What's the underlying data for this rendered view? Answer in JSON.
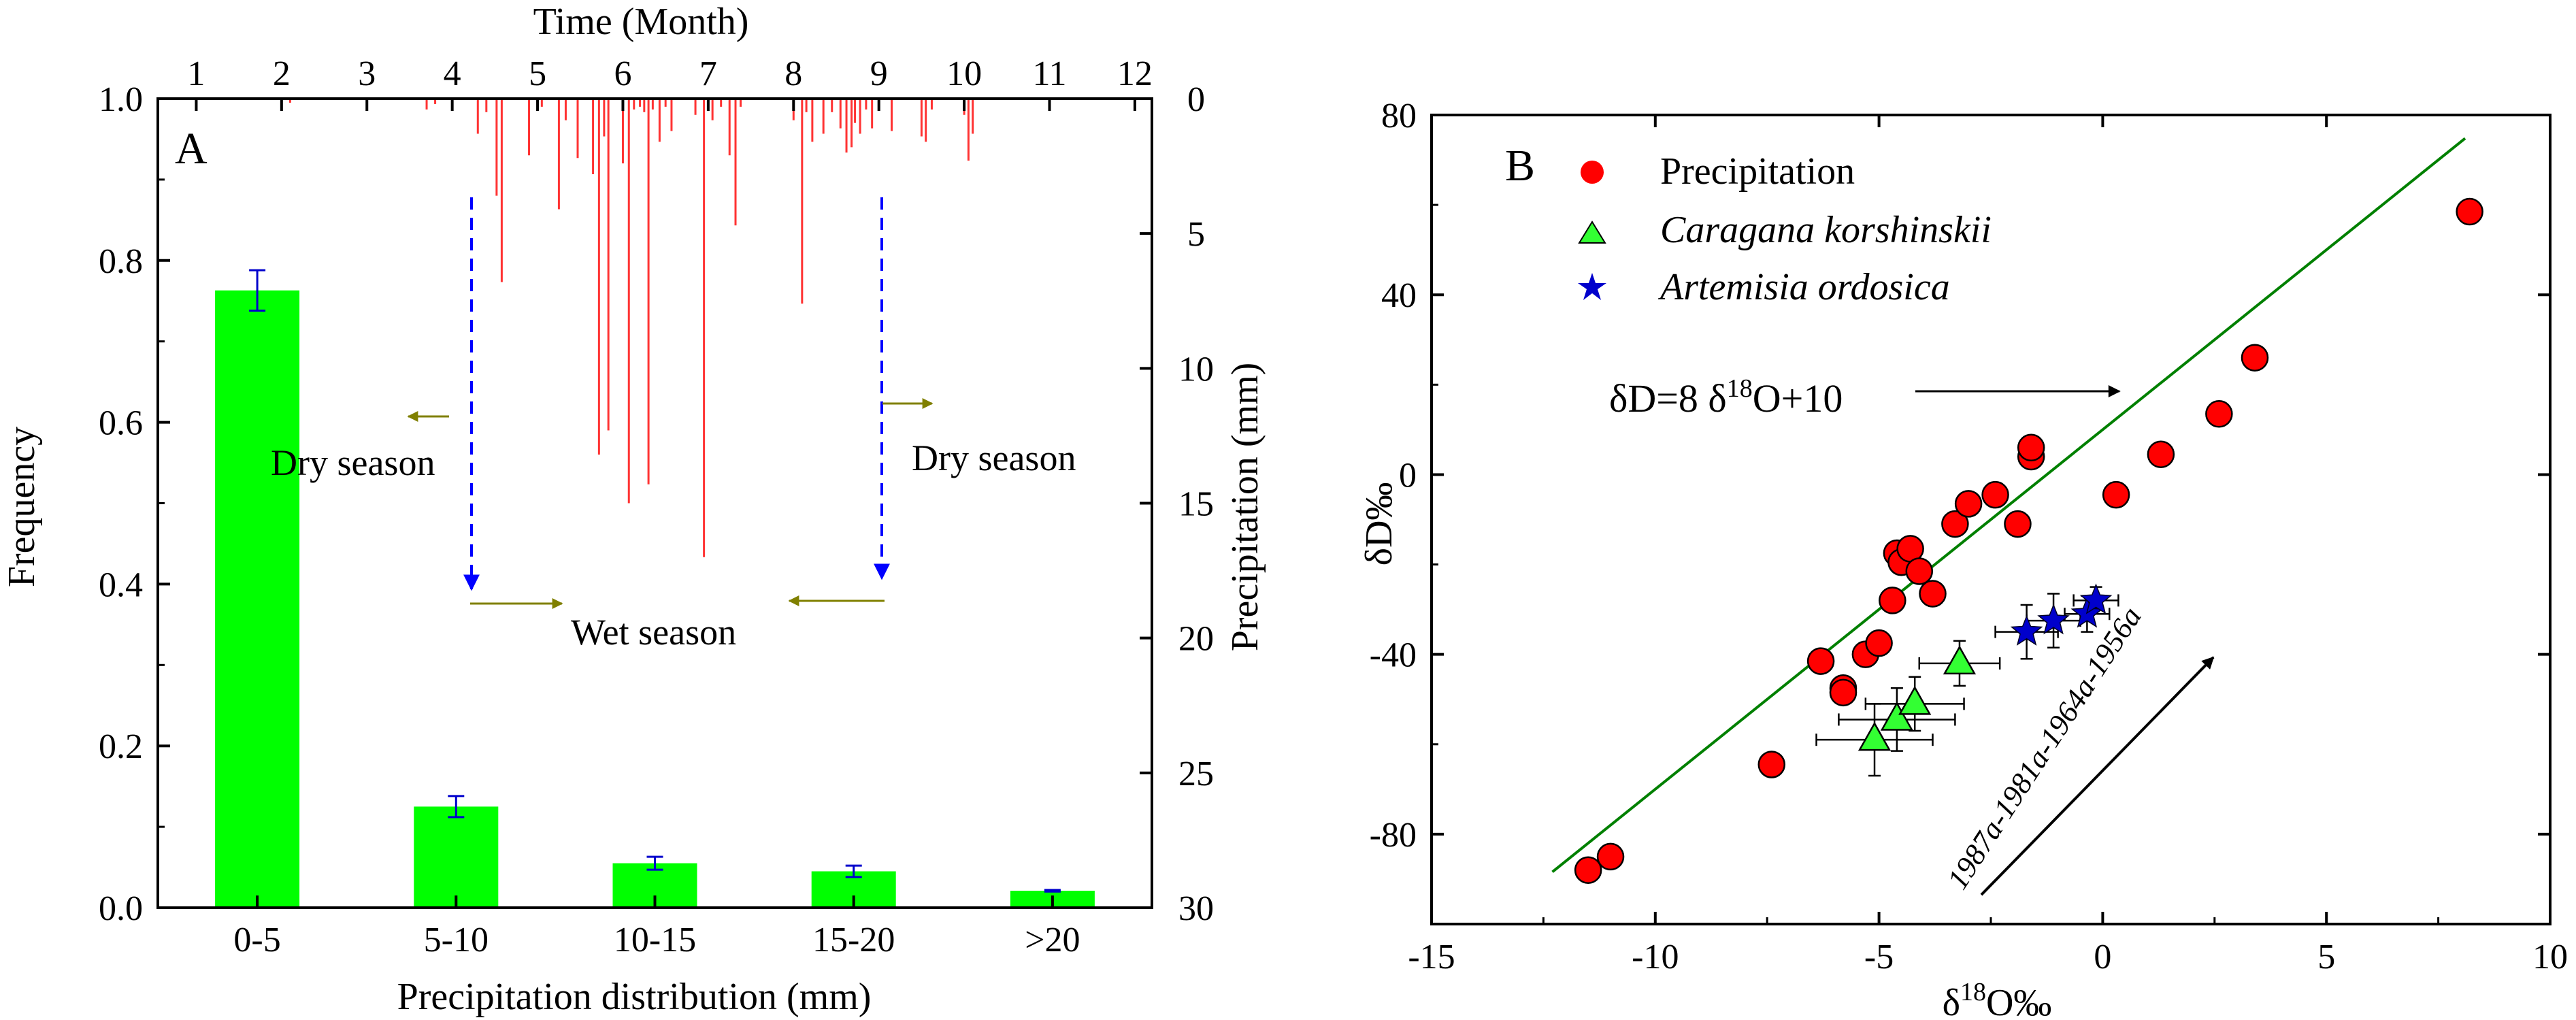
{
  "chart_data": [
    {
      "panel": "A",
      "type": "bar",
      "xlabel": "Precipitation distribution (mm)",
      "ylabel": "Frequency",
      "categories": [
        "0-5",
        "5-10",
        "10-15",
        "15-20",
        ">20"
      ],
      "values": [
        0.763,
        0.125,
        0.055,
        0.045,
        0.021
      ],
      "errors": [
        0.025,
        0.013,
        0.008,
        0.007,
        0.001
      ],
      "ylim": [
        0,
        1.0
      ],
      "yticks": [
        "0.0",
        "0.2",
        "0.4",
        "0.6",
        "0.8",
        "1.0"
      ],
      "bar_color": "#00ff00",
      "error_color": "#0000cc",
      "top_axis": {
        "label": "Time (Month)",
        "range": [
          0.55,
          12.2
        ],
        "ticks": [
          "1",
          "2",
          "3",
          "4",
          "5",
          "6",
          "7",
          "8",
          "9",
          "10",
          "11",
          "12"
        ]
      },
      "right_axis": {
        "label": "Precipitation (mm)",
        "range": [
          0,
          30
        ],
        "inverted": true,
        "ticks": [
          "0",
          "5",
          "10",
          "15",
          "20",
          "25",
          "30"
        ]
      },
      "rain_series": {
        "color": "#ff3333",
        "months": [
          2.1,
          3.7,
          3.8,
          4.3,
          4.4,
          4.52,
          4.58,
          4.9,
          5.05,
          5.25,
          5.33,
          5.47,
          5.65,
          5.72,
          5.78,
          5.83,
          6.0,
          6.07,
          6.13,
          6.2,
          6.25,
          6.3,
          6.35,
          6.43,
          6.5,
          6.57,
          6.85,
          6.95,
          7.05,
          7.15,
          7.25,
          7.32,
          7.38,
          8.0,
          8.1,
          8.15,
          8.22,
          8.35,
          8.45,
          8.55,
          8.62,
          8.68,
          8.72,
          8.78,
          8.85,
          8.92,
          9.15,
          9.5,
          9.55,
          9.62,
          10.0,
          10.05,
          10.1
        ],
        "mm": [
          0.15,
          0.4,
          0.2,
          1.3,
          0.5,
          3.6,
          6.8,
          2.1,
          0.3,
          4.1,
          0.8,
          2.2,
          2.8,
          13.2,
          1.4,
          12.3,
          2.4,
          15.0,
          0.4,
          0.3,
          0.5,
          14.3,
          0.4,
          1.6,
          0.3,
          1.2,
          0.6,
          17.0,
          0.8,
          0.3,
          2.1,
          4.7,
          0.3,
          0.8,
          7.6,
          0.5,
          1.6,
          1.3,
          0.5,
          1.1,
          2.0,
          1.8,
          0.9,
          1.3,
          0.4,
          1.1,
          1.2,
          1.4,
          1.6,
          0.4,
          0.6,
          2.3,
          1.3
        ]
      },
      "annotations": {
        "panel_letter": "A",
        "dry_left": "Dry season",
        "dry_right": "Dry season",
        "wet": "Wet season"
      },
      "annotation_colors": {
        "season_arrow": "#808000",
        "boundary_line": "#0000ff"
      }
    },
    {
      "panel": "B",
      "type": "scatter",
      "xlabel": "δ18O‰",
      "ylabel": "δD‰",
      "xlim": [
        -15,
        10
      ],
      "ylim": [
        -100,
        80
      ],
      "xticks": [
        "-15",
        "-10",
        "-5",
        "0",
        "5",
        "10"
      ],
      "yticks": [
        "-80",
        "-40",
        "0",
        "40",
        "80"
      ],
      "series": [
        {
          "name": "Precipitation",
          "marker": "circle",
          "color": "#ff0000",
          "points": [
            [
              -11.5,
              -88
            ],
            [
              -11.0,
              -85
            ],
            [
              -7.4,
              -64.5
            ],
            [
              -6.3,
              -41.5
            ],
            [
              -5.8,
              -47.5
            ],
            [
              -5.8,
              -48.5
            ],
            [
              -5.3,
              -40
            ],
            [
              -5.0,
              -37.5
            ],
            [
              -4.7,
              -28
            ],
            [
              -4.6,
              -17.5
            ],
            [
              -4.5,
              -19.5
            ],
            [
              -4.3,
              -16.5
            ],
            [
              -4.1,
              -21.5
            ],
            [
              -3.8,
              -26.5
            ],
            [
              -3.3,
              -11
            ],
            [
              -3.0,
              -6.5
            ],
            [
              -2.4,
              -4.5
            ],
            [
              -1.9,
              -11
            ],
            [
              -1.6,
              4
            ],
            [
              -1.6,
              6
            ],
            [
              0.3,
              -4.5
            ],
            [
              1.3,
              4.5
            ],
            [
              2.6,
              13.5
            ],
            [
              3.4,
              26
            ],
            [
              8.2,
              58.5
            ]
          ]
        },
        {
          "name": "Caragana korshinskii",
          "marker": "triangle",
          "color": "#33ff33",
          "points": [
            [
              -5.1,
              -59
            ],
            [
              -4.6,
              -54.5
            ],
            [
              -4.2,
              -51
            ],
            [
              -3.2,
              -42
            ]
          ],
          "xerr": [
            1.3,
            1.3,
            1.1,
            0.9
          ],
          "yerr": [
            8,
            7,
            6,
            5
          ]
        },
        {
          "name": "Artemisia ordosica",
          "marker": "star",
          "color": "#0000cc",
          "points": [
            [
              -1.7,
              -35
            ],
            [
              -1.1,
              -32.5
            ],
            [
              -0.35,
              -31
            ],
            [
              -0.15,
              -28
            ]
          ],
          "xerr": [
            0.7,
            0.6,
            0.5,
            0.5
          ],
          "yerr": [
            6,
            6,
            4,
            3
          ]
        }
      ],
      "lines": [
        {
          "label": "δD=8 δ18O+10",
          "slope": 8,
          "intercept": 10,
          "x_range": [
            -12.3,
            8.1
          ],
          "color": "#008000"
        }
      ],
      "annotations": {
        "panel_letter": "B",
        "lmwl_label": "δD=8 δ18O+10",
        "trend_label": "1987a-1981a-1964a-1956a"
      }
    }
  ]
}
